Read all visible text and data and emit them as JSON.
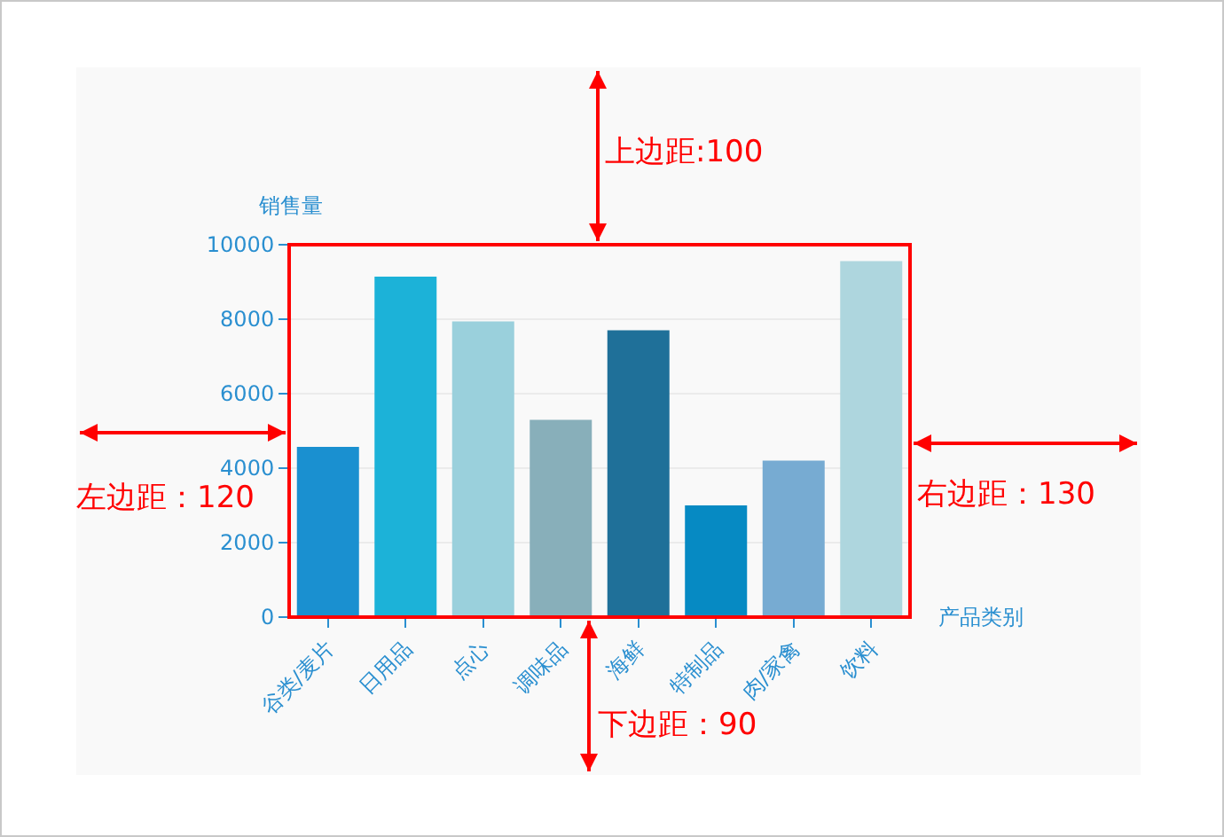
{
  "chart_data": {
    "type": "bar",
    "categories": [
      "谷类/麦片",
      "日用品",
      "点心",
      "调味品",
      "海鲜",
      "特制品",
      "肉/家禽",
      "饮料"
    ],
    "values": [
      4570,
      9140,
      7940,
      5300,
      7700,
      3000,
      4200,
      9560
    ],
    "colors": [
      "#1a90d0",
      "#1cb2d8",
      "#9ad0dc",
      "#88afba",
      "#1f7099",
      "#068ac3",
      "#77abd2",
      "#aed6de"
    ],
    "xlabel": "产品类别",
    "ylabel": "销售量",
    "ylim": [
      0,
      10000
    ],
    "yticks": [
      0,
      2000,
      4000,
      6000,
      8000,
      10000
    ],
    "grid": "y",
    "annotations": [
      "上边距:100",
      "左边距：120",
      "右边距：130",
      "下边距：90"
    ]
  }
}
